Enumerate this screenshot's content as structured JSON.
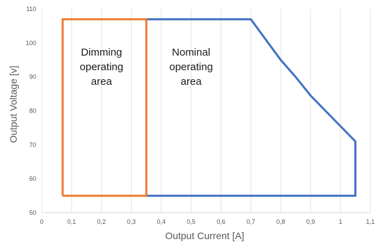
{
  "chart_data": {
    "type": "line",
    "title": "",
    "xlabel": "Output Current [A]",
    "ylabel": "Output Voltage [v]",
    "xlim": [
      0,
      1.1
    ],
    "ylim": [
      50,
      110
    ],
    "x_ticks": [
      0,
      0.1,
      0.2,
      0.3,
      0.4,
      0.5,
      0.6,
      0.7,
      0.8,
      0.9,
      1,
      1.1
    ],
    "x_tick_labels": [
      "0",
      "0,1",
      "0,2",
      "0,3",
      "0,4",
      "0,5",
      "0,6",
      "0,7",
      "0,8",
      "0,9",
      "1",
      "1,1"
    ],
    "y_ticks": [
      50,
      60,
      70,
      80,
      90,
      100,
      110
    ],
    "y_tick_labels": [
      "50",
      "60",
      "70",
      "80",
      "90",
      "100",
      "110"
    ],
    "grid": "vertical",
    "series": [
      {
        "key": "nominal",
        "color": "#4472C4",
        "points": [
          [
            0.35,
            107
          ],
          [
            0.7,
            107
          ],
          [
            0.75,
            101
          ],
          [
            0.8,
            95
          ],
          [
            0.85,
            90
          ],
          [
            0.9,
            84.5
          ],
          [
            0.95,
            80
          ],
          [
            1.0,
            75.5
          ],
          [
            1.05,
            71
          ],
          [
            1.05,
            55
          ],
          [
            0.35,
            55
          ]
        ]
      },
      {
        "key": "dimming",
        "color": "#ED7D31",
        "points": [
          [
            0.07,
            55
          ],
          [
            0.07,
            107
          ],
          [
            0.35,
            107
          ],
          [
            0.35,
            55
          ],
          [
            0.07,
            55
          ]
        ]
      }
    ],
    "annotations": [
      {
        "lines": [
          "Dimming",
          "operating",
          "area"
        ],
        "x": 0.2,
        "y": 93
      },
      {
        "lines": [
          "Nominal",
          "operating",
          "area"
        ],
        "x": 0.5,
        "y": 93
      }
    ]
  }
}
